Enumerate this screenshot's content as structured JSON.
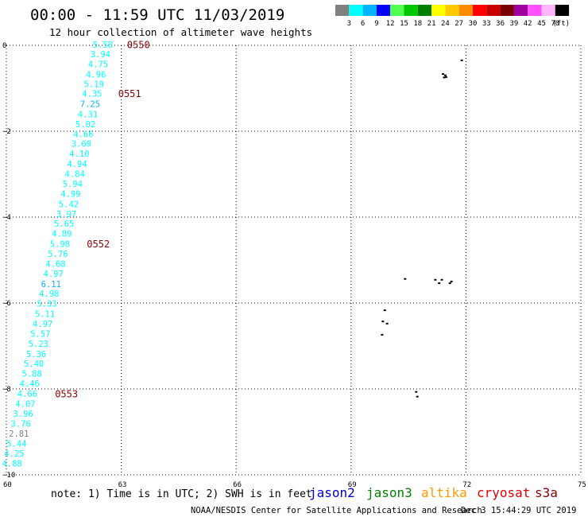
{
  "chart_data": {
    "type": "scatter",
    "title": "00:00 - 11:59 UTC 11/03/2019",
    "subtitle": "12 hour collection of altimeter wave heights",
    "xlim": [
      60,
      75
    ],
    "ylim": [
      -10,
      0
    ],
    "xticks": [
      {
        "value": 60,
        "label": "60"
      },
      {
        "value": 63,
        "label": "63"
      },
      {
        "value": 66,
        "label": "66"
      },
      {
        "value": 69,
        "label": "69"
      },
      {
        "value": 72,
        "label": "72"
      },
      {
        "value": 75,
        "label": "75"
      }
    ],
    "yticks": [
      {
        "value": 0,
        "label": "0"
      },
      {
        "value": -2,
        "label": "−2"
      },
      {
        "value": -4,
        "label": "−4"
      },
      {
        "value": -6,
        "label": "−6"
      },
      {
        "value": -8,
        "label": "−8"
      },
      {
        "value": -10,
        "label": "−10"
      }
    ],
    "grid": true,
    "colorbar": {
      "unit": "(ft)",
      "labels": [
        "3",
        "6",
        "9",
        "12",
        "15",
        "18",
        "21",
        "24",
        "27",
        "30",
        "33",
        "36",
        "39",
        "42",
        "45",
        "70"
      ],
      "colors": [
        "#808080",
        "#00ffff",
        "#00b4ff",
        "#0000ff",
        "#50ff50",
        "#00c800",
        "#008000",
        "#ffff00",
        "#ffc800",
        "#ff8c00",
        "#ff0000",
        "#c80000",
        "#780000",
        "#a000a0",
        "#ff50ff",
        "#ffb4ff",
        "#000000"
      ]
    },
    "series": [
      {
        "name": "jason3",
        "points": [
          {
            "x": 62.78,
            "y": 0.0,
            "v": "5.58"
          },
          {
            "x": 62.72,
            "y": -0.22,
            "v": "3.94"
          },
          {
            "x": 62.66,
            "y": -0.45,
            "v": "4.75"
          },
          {
            "x": 62.6,
            "y": -0.69,
            "v": "4.96"
          },
          {
            "x": 62.55,
            "y": -0.92,
            "v": "5.19"
          },
          {
            "x": 62.5,
            "y": -1.14,
            "v": "4.35"
          },
          {
            "x": 62.45,
            "y": -1.38,
            "v": "7.25"
          },
          {
            "x": 62.39,
            "y": -1.62,
            "v": "4.31"
          },
          {
            "x": 62.33,
            "y": -1.85,
            "v": "5.02"
          },
          {
            "x": 62.27,
            "y": -2.08,
            "v": "4.66"
          },
          {
            "x": 62.22,
            "y": -2.31,
            "v": "3.60"
          },
          {
            "x": 62.17,
            "y": -2.54,
            "v": "4.10"
          },
          {
            "x": 62.11,
            "y": -2.78,
            "v": "4.94"
          },
          {
            "x": 62.05,
            "y": -3.01,
            "v": "4.84"
          },
          {
            "x": 61.99,
            "y": -3.24,
            "v": "5.94"
          },
          {
            "x": 61.94,
            "y": -3.47,
            "v": "4.99"
          },
          {
            "x": 61.89,
            "y": -3.71,
            "v": "5.42"
          },
          {
            "x": 61.83,
            "y": -3.94,
            "v": "3.97"
          },
          {
            "x": 61.77,
            "y": -4.17,
            "v": "5.65"
          },
          {
            "x": 61.71,
            "y": -4.4,
            "v": "4.89"
          },
          {
            "x": 61.66,
            "y": -4.64,
            "v": "5.98"
          },
          {
            "x": 61.61,
            "y": -4.87,
            "v": "5.76"
          },
          {
            "x": 61.55,
            "y": -5.1,
            "v": "4.68"
          },
          {
            "x": 61.49,
            "y": -5.33,
            "v": "4.97"
          },
          {
            "x": 61.43,
            "y": -5.57,
            "v": "6.11"
          },
          {
            "x": 61.38,
            "y": -5.8,
            "v": "4.98"
          },
          {
            "x": 61.32,
            "y": -6.03,
            "v": "5.33"
          },
          {
            "x": 61.27,
            "y": -6.27,
            "v": "5.11"
          },
          {
            "x": 61.21,
            "y": -6.5,
            "v": "4.97"
          },
          {
            "x": 61.15,
            "y": -6.73,
            "v": "5.57"
          },
          {
            "x": 61.1,
            "y": -6.96,
            "v": "5.23"
          },
          {
            "x": 61.04,
            "y": -7.2,
            "v": "5.36"
          },
          {
            "x": 60.98,
            "y": -7.43,
            "v": "5.40"
          },
          {
            "x": 60.93,
            "y": -7.66,
            "v": "5.88"
          },
          {
            "x": 60.87,
            "y": -7.89,
            "v": "4.46"
          },
          {
            "x": 60.81,
            "y": -8.13,
            "v": "4.66"
          },
          {
            "x": 60.76,
            "y": -8.36,
            "v": "4.07"
          },
          {
            "x": 60.7,
            "y": -8.59,
            "v": "3.96"
          },
          {
            "x": 60.64,
            "y": -8.82,
            "v": "3.76"
          },
          {
            "x": 60.59,
            "y": -9.06,
            "v": "2.81"
          },
          {
            "x": 60.53,
            "y": -9.29,
            "v": "5.44"
          },
          {
            "x": 60.47,
            "y": -9.52,
            "v": "4.25"
          },
          {
            "x": 60.41,
            "y": -9.75,
            "v": "4.88"
          }
        ]
      }
    ],
    "time_labels": [
      {
        "x": 63.15,
        "y": 0.0,
        "text": "0550"
      },
      {
        "x": 62.92,
        "y": -1.14,
        "text": "0551"
      },
      {
        "x": 62.1,
        "y": -4.64,
        "text": "0552"
      },
      {
        "x": 61.27,
        "y": -8.13,
        "text": "0553"
      }
    ],
    "land": [
      {
        "x": 71.37,
        "y": -0.65
      },
      {
        "x": 71.43,
        "y": -0.68
      },
      {
        "x": 71.45,
        "y": -0.72
      },
      {
        "x": 71.4,
        "y": -0.73
      },
      {
        "x": 71.86,
        "y": -0.33
      },
      {
        "x": 71.17,
        "y": -5.44
      },
      {
        "x": 71.27,
        "y": -5.52
      },
      {
        "x": 71.34,
        "y": -5.44
      },
      {
        "x": 71.55,
        "y": -5.52
      },
      {
        "x": 71.59,
        "y": -5.48
      },
      {
        "x": 70.38,
        "y": -5.42
      },
      {
        "x": 69.85,
        "y": -6.15
      },
      {
        "x": 69.8,
        "y": -6.41
      },
      {
        "x": 69.91,
        "y": -6.46
      },
      {
        "x": 69.78,
        "y": -6.72
      },
      {
        "x": 70.67,
        "y": -8.05
      },
      {
        "x": 70.7,
        "y": -8.16
      }
    ]
  },
  "legend": {
    "note": "note: 1) Time is in UTC; 2) SWH is in feet",
    "satellites": [
      {
        "name": "jason2",
        "color": "#0000d0"
      },
      {
        "name": "jason3",
        "color": "#008000"
      },
      {
        "name": "altika",
        "color": "#ff9a00"
      },
      {
        "name": "cryosat",
        "color": "#e00000"
      },
      {
        "name": "s3a",
        "color": "#8b0000"
      }
    ]
  },
  "footer": {
    "credit": "NOAA/NESDIS Center for Satellite Applications and Research",
    "timestamp": "Dec  3 15:44:29 UTC 2019"
  }
}
